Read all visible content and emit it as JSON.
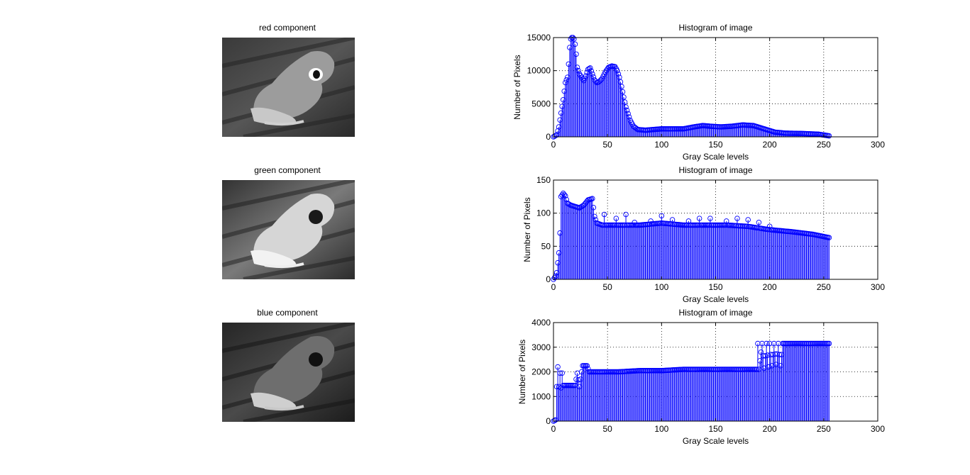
{
  "images": [
    {
      "title": "red component",
      "tone": "red"
    },
    {
      "title": "green component",
      "tone": "green"
    },
    {
      "title": "blue component",
      "tone": "blue"
    }
  ],
  "colors": {
    "stem": "#0000ff",
    "background": "#ffffff",
    "grid": "#000000"
  },
  "chart_data": [
    {
      "type": "stem",
      "title": "Histogram of image",
      "xlabel": "Gray Scale levels",
      "ylabel": "Number of Pixels",
      "xlim": [
        0,
        300
      ],
      "ylim": [
        0,
        15000
      ],
      "xticks": [
        0,
        50,
        100,
        150,
        200,
        250,
        300
      ],
      "yticks": [
        0,
        5000,
        10000,
        15000
      ],
      "grid": true,
      "profile": [
        [
          0,
          0
        ],
        [
          3,
          300
        ],
        [
          5,
          1500
        ],
        [
          7,
          3600
        ],
        [
          9,
          5600
        ],
        [
          11,
          8200
        ],
        [
          13,
          9000
        ],
        [
          14,
          11000
        ],
        [
          15,
          13500
        ],
        [
          16,
          14800
        ],
        [
          17,
          15000
        ],
        [
          18,
          15000
        ],
        [
          19,
          14800
        ],
        [
          20,
          14000
        ],
        [
          21,
          12500
        ],
        [
          22,
          10500
        ],
        [
          24,
          9500
        ],
        [
          26,
          9000
        ],
        [
          28,
          8500
        ],
        [
          30,
          9200
        ],
        [
          32,
          10200
        ],
        [
          34,
          10400
        ],
        [
          36,
          9500
        ],
        [
          38,
          8600
        ],
        [
          40,
          8200
        ],
        [
          42,
          8300
        ],
        [
          45,
          8800
        ],
        [
          48,
          9800
        ],
        [
          51,
          10500
        ],
        [
          54,
          10700
        ],
        [
          57,
          10600
        ],
        [
          59,
          10000
        ],
        [
          61,
          9000
        ],
        [
          63,
          7600
        ],
        [
          65,
          6000
        ],
        [
          67,
          4500
        ],
        [
          69,
          3500
        ],
        [
          71,
          2500
        ],
        [
          74,
          1600
        ],
        [
          78,
          1100
        ],
        [
          85,
          1000
        ],
        [
          100,
          1200
        ],
        [
          120,
          1200
        ],
        [
          130,
          1500
        ],
        [
          138,
          1700
        ],
        [
          145,
          1600
        ],
        [
          155,
          1500
        ],
        [
          165,
          1600
        ],
        [
          175,
          1800
        ],
        [
          185,
          1700
        ],
        [
          195,
          1200
        ],
        [
          205,
          700
        ],
        [
          215,
          550
        ],
        [
          230,
          500
        ],
        [
          245,
          400
        ],
        [
          255,
          150
        ]
      ]
    },
    {
      "type": "stem",
      "title": "Histogram of image",
      "xlabel": "Gray Scale levels",
      "ylabel": "Number of Pixels",
      "xlim": [
        0,
        300
      ],
      "ylim": [
        0,
        150
      ],
      "xticks": [
        0,
        50,
        100,
        150,
        200,
        250,
        300
      ],
      "yticks": [
        0,
        50,
        100,
        150
      ],
      "grid": true,
      "profile": [
        [
          0,
          0
        ],
        [
          2,
          5
        ],
        [
          3,
          10
        ],
        [
          5,
          40
        ],
        [
          6,
          70
        ],
        [
          7,
          125
        ],
        [
          9,
          130
        ],
        [
          11,
          126
        ],
        [
          13,
          115
        ],
        [
          16,
          112
        ],
        [
          20,
          110
        ],
        [
          24,
          108
        ],
        [
          28,
          112
        ],
        [
          32,
          120
        ],
        [
          36,
          122
        ],
        [
          38,
          95
        ],
        [
          40,
          85
        ],
        [
          45,
          82
        ],
        [
          50,
          82
        ],
        [
          60,
          82
        ],
        [
          80,
          82
        ],
        [
          100,
          85
        ],
        [
          120,
          82
        ],
        [
          140,
          82
        ],
        [
          160,
          82
        ],
        [
          180,
          80
        ],
        [
          200,
          75
        ],
        [
          220,
          72
        ],
        [
          240,
          68
        ],
        [
          255,
          63
        ]
      ],
      "spikes": [
        [
          47,
          98
        ],
        [
          58,
          92
        ],
        [
          67,
          98
        ],
        [
          75,
          86
        ],
        [
          90,
          88
        ],
        [
          100,
          96
        ],
        [
          110,
          90
        ],
        [
          125,
          88
        ],
        [
          135,
          92
        ],
        [
          145,
          92
        ],
        [
          160,
          88
        ],
        [
          170,
          92
        ],
        [
          180,
          90
        ],
        [
          190,
          86
        ],
        [
          200,
          80
        ]
      ]
    },
    {
      "type": "stem",
      "title": "Histogram of image",
      "xlabel": "Gray Scale levels",
      "ylabel": "Number of Pixels",
      "xlim": [
        0,
        300
      ],
      "ylim": [
        0,
        4000
      ],
      "xticks": [
        0,
        50,
        100,
        150,
        200,
        250,
        300
      ],
      "yticks": [
        0,
        1000,
        2000,
        3000,
        4000
      ],
      "grid": true,
      "profile": [
        [
          0,
          0
        ],
        [
          2,
          50
        ],
        [
          3,
          1400
        ],
        [
          4,
          2200
        ],
        [
          5,
          1400
        ],
        [
          6,
          1950
        ],
        [
          7,
          1350
        ],
        [
          8,
          1950
        ],
        [
          9,
          1450
        ],
        [
          20,
          1450
        ],
        [
          22,
          1950
        ],
        [
          24,
          1400
        ],
        [
          26,
          2000
        ],
        [
          27,
          2250
        ],
        [
          29,
          2250
        ],
        [
          31,
          2250
        ],
        [
          33,
          2000
        ],
        [
          40,
          2000
        ],
        [
          60,
          2000
        ],
        [
          80,
          2050
        ],
        [
          100,
          2050
        ],
        [
          120,
          2100
        ],
        [
          140,
          2100
        ],
        [
          160,
          2100
        ],
        [
          180,
          2100
        ],
        [
          188,
          2100
        ],
        [
          189,
          3150
        ],
        [
          190,
          2100
        ],
        [
          193,
          3150
        ],
        [
          195,
          2150
        ],
        [
          197,
          3150
        ],
        [
          199,
          2200
        ],
        [
          200,
          3150
        ],
        [
          202,
          2250
        ],
        [
          204,
          3150
        ],
        [
          206,
          2300
        ],
        [
          208,
          3150
        ],
        [
          210,
          2250
        ],
        [
          212,
          3150
        ],
        [
          255,
          3150
        ]
      ]
    }
  ]
}
